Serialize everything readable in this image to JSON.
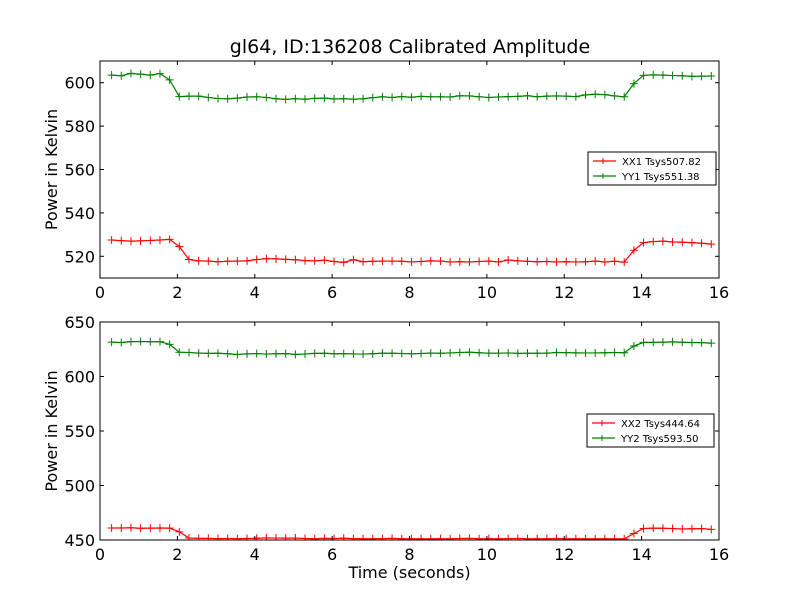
{
  "figure": {
    "title": "gl64, ID:136208 Calibrated Amplitude"
  },
  "chart_data": [
    {
      "type": "line",
      "title": "gl64, ID:136208 Calibrated Amplitude",
      "xlabel": "",
      "ylabel": "Power in Kelvin",
      "xlim": [
        0,
        16
      ],
      "ylim": [
        510,
        610
      ],
      "xticks": [
        0,
        2,
        4,
        6,
        8,
        10,
        12,
        14,
        16
      ],
      "yticks": [
        520,
        540,
        560,
        580,
        600
      ],
      "grid": false,
      "legend_position": "center-right",
      "x": [
        0.3,
        0.55,
        0.8,
        1.05,
        1.3,
        1.55,
        1.8,
        2.05,
        2.3,
        2.55,
        2.8,
        3.05,
        3.3,
        3.55,
        3.8,
        4.05,
        4.3,
        4.55,
        4.8,
        5.05,
        5.3,
        5.55,
        5.8,
        6.05,
        6.3,
        6.55,
        6.8,
        7.05,
        7.3,
        7.55,
        7.8,
        8.05,
        8.3,
        8.55,
        8.8,
        9.05,
        9.3,
        9.55,
        9.8,
        10.05,
        10.3,
        10.55,
        10.8,
        11.05,
        11.3,
        11.55,
        11.8,
        12.05,
        12.3,
        12.55,
        12.8,
        13.05,
        13.3,
        13.55,
        13.8,
        14.05,
        14.3,
        14.55,
        14.8,
        15.05,
        15.3,
        15.55,
        15.8
      ],
      "series": [
        {
          "name": "XX1 Tsys507.82",
          "color": "#ff0000",
          "values": [
            527.5,
            527.2,
            527.0,
            527.1,
            527.3,
            527.5,
            527.8,
            524.5,
            518.5,
            517.9,
            517.8,
            517.5,
            517.7,
            517.8,
            517.9,
            518.5,
            518.9,
            518.8,
            518.6,
            518.4,
            518.0,
            517.9,
            518.2,
            517.6,
            517.2,
            518.4,
            517.5,
            517.7,
            517.8,
            517.8,
            517.7,
            517.4,
            517.6,
            517.9,
            517.8,
            517.4,
            517.5,
            517.4,
            517.6,
            517.8,
            517.4,
            518.3,
            517.9,
            517.7,
            517.5,
            517.6,
            517.4,
            517.5,
            517.4,
            517.5,
            517.8,
            517.4,
            517.7,
            517.3,
            522.8,
            526.3,
            526.8,
            527.0,
            526.6,
            526.5,
            526.3,
            526.0,
            525.6
          ]
        },
        {
          "name": "YY1 Tsys551.38",
          "color": "#008000",
          "values": [
            603.5,
            603.2,
            604.3,
            603.9,
            603.5,
            604.2,
            601.3,
            593.6,
            593.8,
            593.8,
            593.2,
            592.7,
            592.6,
            592.9,
            593.4,
            593.5,
            593.2,
            592.6,
            592.3,
            592.6,
            592.4,
            592.8,
            592.9,
            592.5,
            592.6,
            592.4,
            592.6,
            593.1,
            593.5,
            593.2,
            593.6,
            593.3,
            593.7,
            593.5,
            593.5,
            593.4,
            594.0,
            593.9,
            593.5,
            593.2,
            593.4,
            593.6,
            593.7,
            594.0,
            593.5,
            593.8,
            593.9,
            593.8,
            593.6,
            594.4,
            594.7,
            594.5,
            593.9,
            593.5,
            599.6,
            603.4,
            603.6,
            603.5,
            603.3,
            603.2,
            602.9,
            603.0,
            603.1
          ]
        }
      ]
    },
    {
      "type": "line",
      "title": "",
      "xlabel": "Time (seconds)",
      "ylabel": "Power in Kelvin",
      "xlim": [
        0,
        16
      ],
      "ylim": [
        450,
        650
      ],
      "xticks": [
        0,
        2,
        4,
        6,
        8,
        10,
        12,
        14,
        16
      ],
      "yticks": [
        450,
        500,
        550,
        600,
        650
      ],
      "grid": false,
      "legend_position": "center-right",
      "x": [
        0.3,
        0.55,
        0.8,
        1.05,
        1.3,
        1.55,
        1.8,
        2.05,
        2.3,
        2.55,
        2.8,
        3.05,
        3.3,
        3.55,
        3.8,
        4.05,
        4.3,
        4.55,
        4.8,
        5.05,
        5.3,
        5.55,
        5.8,
        6.05,
        6.3,
        6.55,
        6.8,
        7.05,
        7.3,
        7.55,
        7.8,
        8.05,
        8.3,
        8.55,
        8.8,
        9.05,
        9.3,
        9.55,
        9.8,
        10.05,
        10.3,
        10.55,
        10.8,
        11.05,
        11.3,
        11.55,
        11.8,
        12.05,
        12.3,
        12.55,
        12.8,
        13.05,
        13.3,
        13.55,
        13.8,
        14.05,
        14.3,
        14.55,
        14.8,
        15.05,
        15.3,
        15.55,
        15.8
      ],
      "series": [
        {
          "name": "XX2 Tsys444.64",
          "color": "#ff0000",
          "values": [
            461.0,
            461.0,
            461.2,
            460.8,
            460.9,
            461.0,
            460.9,
            457.5,
            451.8,
            451.5,
            451.5,
            451.3,
            451.4,
            451.3,
            451.4,
            451.6,
            451.9,
            451.8,
            451.7,
            451.8,
            451.4,
            451.2,
            451.5,
            451.4,
            451.6,
            451.3,
            451.2,
            451.2,
            451.3,
            451.5,
            451.2,
            451.2,
            451.1,
            451.0,
            451.2,
            451.1,
            451.4,
            451.5,
            451.2,
            451.3,
            451.1,
            451.3,
            451.4,
            451.2,
            451.1,
            451.2,
            451.4,
            451.1,
            451.2,
            451.1,
            451.0,
            451.2,
            451.1,
            451.0,
            456.0,
            460.6,
            460.9,
            460.8,
            460.5,
            460.1,
            460.3,
            460.4,
            459.8
          ]
        },
        {
          "name": "YY2 Tsys593.50",
          "color": "#008000",
          "values": [
            631.5,
            631.2,
            632.0,
            632.1,
            631.9,
            632.0,
            629.5,
            622.3,
            622.0,
            621.5,
            621.2,
            621.3,
            620.9,
            620.2,
            620.8,
            621.0,
            620.6,
            620.9,
            621.0,
            620.3,
            620.6,
            621.2,
            621.3,
            620.9,
            621.0,
            620.7,
            620.6,
            620.9,
            621.4,
            621.3,
            621.1,
            620.8,
            621.1,
            621.5,
            621.3,
            621.6,
            622.0,
            622.3,
            621.8,
            621.4,
            621.4,
            621.6,
            621.2,
            621.4,
            621.3,
            621.4,
            622.0,
            621.9,
            621.7,
            621.6,
            621.6,
            621.8,
            622.0,
            621.8,
            628.0,
            631.3,
            631.3,
            631.5,
            631.8,
            631.4,
            631.2,
            631.1,
            630.6
          ]
        }
      ]
    }
  ]
}
